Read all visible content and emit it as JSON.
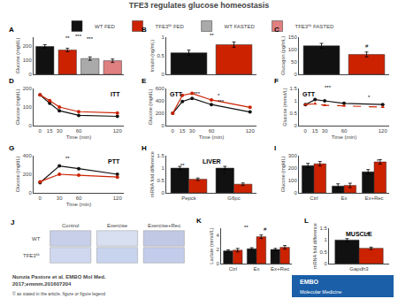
{
  "title": "TFE3 regulates glucose homeostasis",
  "annotations": [
    {
      "text": "Nunzia Pastore et al. EMBO Mol Med.\n2017;emmm.201607204"
    },
    {
      "text": "© as stated in the article, figure or figure legend"
    },
    {
      "text": "EMBO",
      "color": "#1a5fa8"
    },
    {
      "text": "Molecular Medicine",
      "color": "#1a5fa8"
    }
  ],
  "chart_data": [
    {
      "type": "bar",
      "title": "A",
      "ylabel": "Glucose (mg/dL)",
      "categories": [
        "WT FED",
        "TFE3ᵏᵏ FED",
        "WT FASTED",
        "TFE3ᵏᵏ FASTED"
      ],
      "values": [
        195,
        170,
        110,
        95
      ],
      "errors": [
        12,
        12,
        12,
        12
      ],
      "colors": [
        "#111111",
        "#cc2200",
        "#aaaaaa",
        "#e08080"
      ],
      "ylim": [
        0,
        260
      ],
      "yticks": [
        0,
        100,
        200
      ],
      "legend": "top",
      "tick_labels": "y",
      "grid": false,
      "annotations": [
        {
          "text": "**"
        },
        {
          "text": "***"
        },
        {
          "text": "***"
        }
      ]
    },
    {
      "type": "bar",
      "title": "B",
      "ylabel": "Insulin (ng/mL)",
      "categories": [
        null,
        null
      ],
      "values": [
        0.58,
        0.8
      ],
      "errors": [
        0.07,
        0.07
      ],
      "colors": [
        "#111111",
        "#cc2200"
      ],
      "ylim": [
        0,
        1.0
      ],
      "yticks": [
        0,
        0.5,
        1
      ],
      "tick_labels": "y",
      "grid": false,
      "annotations": [
        {
          "text": "**"
        }
      ]
    },
    {
      "type": "bar",
      "title": "C",
      "ylabel": "Glucagon (pg/mL)",
      "categories": [
        null,
        null
      ],
      "values": [
        115,
        80
      ],
      "errors": [
        10,
        10
      ],
      "colors": [
        "#111111",
        "#cc2200"
      ],
      "ylim": [
        0,
        150
      ],
      "yticks": [
        0,
        50,
        100,
        150
      ],
      "tick_labels": "y",
      "grid": false,
      "annotations": [
        {
          "text": "#"
        }
      ]
    },
    {
      "type": "line",
      "title": "D",
      "xlabel": "Time (min)",
      "ylabel": "Glucose (mg/dL)",
      "x": [
        0,
        15,
        30,
        60,
        120
      ],
      "series": [
        {
          "color": "#111111",
          "marker": "circle",
          "line_style": "solid",
          "values": [
            165,
            120,
            80,
            55,
            50
          ]
        },
        {
          "color": "#cc2200",
          "marker": "circle",
          "line_style": "solid",
          "values": [
            165,
            135,
            100,
            75,
            68
          ]
        }
      ],
      "xlim": [
        -10,
        130
      ],
      "xticks": [
        0,
        15,
        30,
        60,
        120
      ],
      "ylim": [
        0,
        200
      ],
      "yticks": [
        0,
        100,
        200
      ],
      "grid": false,
      "annotations": [
        {
          "text": "ITT"
        }
      ]
    },
    {
      "type": "line",
      "title": "E",
      "xlabel": "Time (min)",
      "ylabel": "Glucose (mg/dL)",
      "x": [
        0,
        15,
        30,
        60,
        120
      ],
      "series": [
        {
          "color": "#111111",
          "marker": "circle",
          "line_style": "solid",
          "values": [
            200,
            390,
            440,
            340,
            220
          ]
        },
        {
          "color": "#cc2200",
          "marker": "circle",
          "line_style": "solid",
          "values": [
            200,
            490,
            520,
            415,
            295
          ]
        }
      ],
      "xlim": [
        -10,
        130
      ],
      "xticks": [
        0,
        15,
        30,
        60,
        120
      ],
      "ylim": [
        0,
        600
      ],
      "yticks": [
        0,
        200,
        400,
        600
      ],
      "grid": false,
      "annotations": [
        {
          "text": "GTT"
        },
        {
          "text": "***"
        },
        {
          "text": "*"
        },
        {
          "text": "***"
        }
      ]
    },
    {
      "type": "line",
      "title": "F",
      "xlabel": "Time (min)",
      "ylabel": "Glucose (mmol/L)",
      "x": [
        0,
        15,
        30,
        60,
        120
      ],
      "series": [
        {
          "color": "#111111",
          "marker": "circle",
          "line_style": "solid",
          "values": [
            0.85,
            1.05,
            1.0,
            0.9,
            0.85
          ]
        },
        {
          "color": "#cc2200",
          "marker": "triangle",
          "line_style": "dashed",
          "values": [
            0.85,
            0.88,
            0.82,
            0.8,
            0.75
          ]
        }
      ],
      "xlim": [
        -10,
        130
      ],
      "xticks": [
        0,
        15,
        30,
        60,
        120
      ],
      "ylim": [
        0.0,
        1.5
      ],
      "yticks": [
        0,
        0.5,
        1,
        1.5
      ],
      "grid": false,
      "annotations": [
        {
          "text": "GTT"
        },
        {
          "text": "***"
        },
        {
          "text": "*"
        }
      ]
    },
    {
      "type": "line",
      "title": "G",
      "xlabel": "Time (min)",
      "ylabel": "Glucose (mg/dL)",
      "x": [
        0,
        30,
        60,
        120
      ],
      "series": [
        {
          "color": "#111111",
          "marker": "circle",
          "line_style": "solid",
          "values": [
            110,
            290,
            260,
            200
          ]
        },
        {
          "color": "#cc2200",
          "marker": "circle",
          "line_style": "solid",
          "values": [
            120,
            200,
            190,
            170
          ]
        }
      ],
      "xlim": [
        -10,
        130
      ],
      "xticks": [
        0,
        30,
        60,
        120
      ],
      "ylim": [
        0,
        400
      ],
      "yticks": [
        0,
        200,
        400
      ],
      "grid": false,
      "annotations": [
        {
          "text": "PTT"
        },
        {
          "text": "**"
        }
      ]
    },
    {
      "type": "bar",
      "title": "H",
      "ylabel": "mRNA fold difference",
      "categories": [
        "Pepck",
        "G6pc"
      ],
      "series": [
        {
          "color": "#111111",
          "values": [
            1.0,
            1.0
          ],
          "errors": [
            0.07,
            0.07
          ]
        },
        {
          "color": "#cc2200",
          "values": [
            0.55,
            0.35
          ],
          "errors": [
            0.05,
            0.05
          ]
        }
      ],
      "ylim": [
        0.0,
        1.5
      ],
      "yticks": [
        0,
        0.5,
        1,
        1.5
      ],
      "grid": false,
      "annotations": [
        {
          "text": "LIVER"
        },
        {
          "text": "**"
        },
        {
          "text": "*"
        }
      ]
    },
    {
      "type": "bar",
      "title": "I",
      "ylabel": "Glucose (mg/dL)",
      "categories": [
        "Ctrl",
        "Ex",
        "Ex+Rec"
      ],
      "series": [
        {
          "color": "#111111",
          "values": [
            220,
            55,
            170
          ],
          "errors": [
            18,
            18,
            18
          ]
        },
        {
          "color": "#cc2200",
          "values": [
            235,
            60,
            250
          ],
          "errors": [
            18,
            18,
            18
          ]
        }
      ],
      "ylim": [
        0,
        300
      ],
      "yticks": [
        0,
        100,
        200,
        300
      ],
      "grid": false,
      "annotations": [
        {
          "text": "*"
        }
      ]
    },
    {
      "type": "image",
      "title": "J",
      "categories": [
        "Control",
        "Exercise",
        "Exercise+Rec"
      ],
      "series": [
        {
          "name": "WT",
          "colors": [
            "#c8cfe8",
            "#d8dff0",
            "#c0c8e4"
          ]
        },
        {
          "name": "TFE3ᵏᵏ",
          "colors": [
            "#d0d8f0",
            "#c8d4ee",
            "#c4ccec"
          ]
        }
      ]
    },
    {
      "type": "bar",
      "title": "K",
      "ylabel": "Lactate (mmol/L)",
      "categories": [
        "Ctrl",
        "Ex",
        "Ex+Rec"
      ],
      "series": [
        {
          "color": "#111111",
          "values": [
            1.8,
            2.1,
            2.0
          ],
          "errors": [
            0.15,
            0.15,
            0.15
          ]
        },
        {
          "color": "#cc2200",
          "values": [
            1.9,
            3.8,
            2.3
          ],
          "errors": [
            0.25,
            0.25,
            0.25
          ]
        }
      ],
      "ylim": [
        0,
        5
      ],
      "yticks": [
        0,
        2,
        4
      ],
      "grid": false,
      "annotations": [
        {
          "text": "**"
        },
        {
          "text": "#"
        }
      ]
    },
    {
      "type": "bar",
      "title": "L",
      "ylabel": "mRNA fold difference",
      "categories": [
        "Gapdh3"
      ],
      "series": [
        {
          "color": "#111111",
          "values": [
            1.0
          ],
          "errors": [
            0.06
          ]
        },
        {
          "color": "#cc2200",
          "values": [
            0.65
          ],
          "errors": [
            0.05
          ]
        }
      ],
      "ylim": [
        0.0,
        1.5
      ],
      "yticks": [
        0,
        0.5,
        1,
        1.5
      ],
      "grid": false,
      "annotations": [
        {
          "text": "MUSCLE"
        },
        {
          "text": "#"
        }
      ]
    }
  ]
}
